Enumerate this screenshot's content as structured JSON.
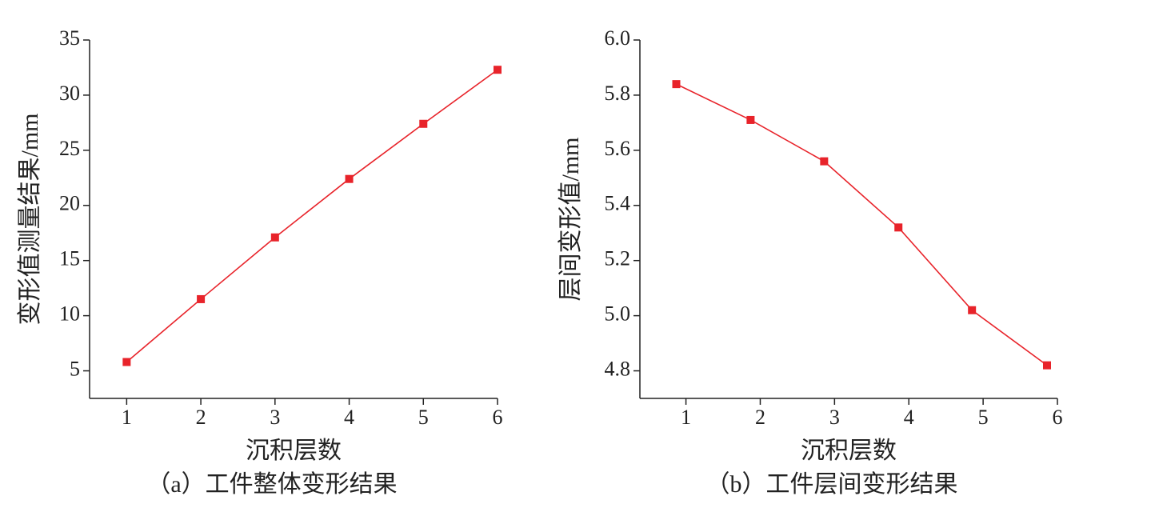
{
  "chart_data": [
    {
      "type": "line",
      "caption": "（a）工件整体变形结果",
      "x_label": "沉积层数",
      "y_label": "变形值测量结果/mm",
      "x": [
        1,
        2,
        3,
        4,
        5,
        6
      ],
      "series": [
        {
          "color": "#e8232a",
          "values": [
            5.8,
            11.5,
            17.1,
            22.4,
            27.4,
            32.3
          ]
        }
      ],
      "xlim": [
        0.5,
        6
      ],
      "xticks": [
        1,
        2,
        3,
        4,
        5,
        6
      ],
      "ylim": [
        2.5,
        35
      ],
      "yticks": [
        5,
        10,
        15,
        20,
        25,
        30,
        35
      ]
    },
    {
      "type": "line",
      "caption": "（b）工件层间变形结果",
      "x_label": "沉积层数",
      "y_label": "层间变形值/mm",
      "x": [
        0.87,
        1.87,
        2.86,
        3.86,
        4.85,
        5.86
      ],
      "series": [
        {
          "color": "#e8232a",
          "values": [
            5.84,
            5.71,
            5.56,
            5.32,
            5.02,
            4.82
          ]
        }
      ],
      "xlim": [
        0.38,
        6
      ],
      "xticks": [
        1,
        2,
        3,
        4,
        5,
        6
      ],
      "ylim": [
        4.7,
        6.0
      ],
      "yticks": [
        {
          "value": 4.8,
          "label": "4.8"
        },
        {
          "value": 5.0,
          "label": "5.0"
        },
        5.2,
        5.4,
        5.6,
        5.8,
        {
          "value": 6.0,
          "label": "6.0"
        }
      ]
    }
  ]
}
